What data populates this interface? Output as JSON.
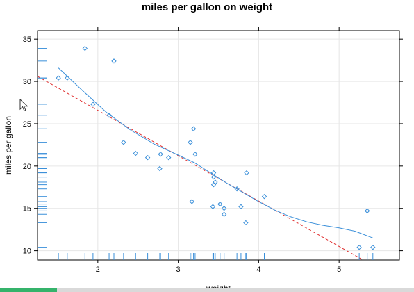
{
  "chart_data": {
    "type": "scatter",
    "title": "miles per gallon on weight",
    "xlabel": "weight",
    "ylabel": "miles per gallon",
    "xlim": [
      1.25,
      5.75
    ],
    "ylim": [
      8.9,
      36.0
    ],
    "x_ticks": [
      2,
      3,
      4,
      5
    ],
    "y_ticks": [
      10,
      15,
      20,
      25,
      30,
      35
    ],
    "grid": true,
    "points": [
      {
        "x": 1.51,
        "y": 30.4
      },
      {
        "x": 1.62,
        "y": 30.4
      },
      {
        "x": 1.84,
        "y": 33.9
      },
      {
        "x": 1.94,
        "y": 27.3
      },
      {
        "x": 2.14,
        "y": 26.0
      },
      {
        "x": 2.2,
        "y": 32.4
      },
      {
        "x": 2.32,
        "y": 22.8
      },
      {
        "x": 2.47,
        "y": 21.5
      },
      {
        "x": 2.62,
        "y": 21.0
      },
      {
        "x": 2.77,
        "y": 19.7
      },
      {
        "x": 2.78,
        "y": 21.4
      },
      {
        "x": 2.88,
        "y": 21.0
      },
      {
        "x": 3.15,
        "y": 22.8
      },
      {
        "x": 3.17,
        "y": 15.8
      },
      {
        "x": 3.19,
        "y": 24.4
      },
      {
        "x": 3.21,
        "y": 21.4
      },
      {
        "x": 3.43,
        "y": 15.2
      },
      {
        "x": 3.44,
        "y": 18.7
      },
      {
        "x": 3.44,
        "y": 19.2
      },
      {
        "x": 3.44,
        "y": 17.8
      },
      {
        "x": 3.46,
        "y": 18.1
      },
      {
        "x": 3.52,
        "y": 15.5
      },
      {
        "x": 3.57,
        "y": 15.0
      },
      {
        "x": 3.57,
        "y": 14.3
      },
      {
        "x": 3.73,
        "y": 17.3
      },
      {
        "x": 3.78,
        "y": 15.2
      },
      {
        "x": 3.84,
        "y": 13.3
      },
      {
        "x": 3.85,
        "y": 19.2
      },
      {
        "x": 4.07,
        "y": 16.4
      },
      {
        "x": 5.25,
        "y": 10.4
      },
      {
        "x": 5.35,
        "y": 14.7
      },
      {
        "x": 5.42,
        "y": 10.4
      }
    ],
    "smooth_line": {
      "x": [
        1.51,
        1.8,
        2.1,
        2.4,
        2.7,
        3.0,
        3.2,
        3.4,
        3.6,
        3.8,
        4.0,
        4.2,
        4.4,
        4.6,
        4.8,
        5.0,
        5.2,
        5.42
      ],
      "y": [
        31.6,
        29.0,
        26.4,
        24.3,
        22.6,
        21.3,
        20.4,
        19.2,
        18.0,
        16.9,
        15.8,
        14.8,
        14.0,
        13.4,
        13.0,
        12.7,
        12.3,
        11.5
      ],
      "color": "#3a8fd9"
    },
    "regression_line": {
      "x": [
        1.25,
        5.3
      ],
      "y": [
        30.6,
        8.9
      ],
      "color": "#e03030",
      "style": "dashed"
    },
    "point_color": "#3a8fd9",
    "rug_color": "#3a8fd9"
  },
  "progress_fraction": 0.137
}
